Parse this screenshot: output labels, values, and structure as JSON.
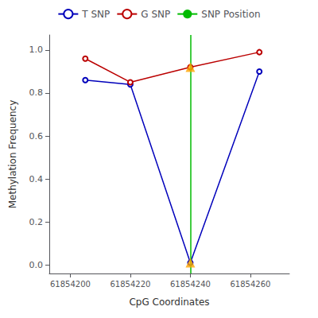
{
  "chart_data": {
    "type": "line",
    "xlabel": "CpG Coordinates",
    "ylabel": "Methylation Frequency",
    "x": [
      61854205,
      61854220,
      61854240,
      61854263
    ],
    "series": [
      {
        "name": "T SNP",
        "color": "#0000BB",
        "values": [
          0.86,
          0.84,
          0.01,
          0.9
        ],
        "marker": "open_circle"
      },
      {
        "name": "G SNP",
        "color": "#BB0000",
        "values": [
          0.96,
          0.85,
          0.92,
          0.99
        ],
        "marker": "open_circle"
      },
      {
        "name": "SNP Position",
        "type": "vline",
        "color": "#00BB00",
        "x": [
          61854240
        ]
      }
    ],
    "annotations": [
      {
        "x": 61854240,
        "y": 0.92,
        "marker": "triangle",
        "color": "#FFA500"
      },
      {
        "x": 61854240,
        "y": 0.01,
        "marker": "triangle",
        "color": "#FFA500"
      }
    ],
    "xlim": [
      61854193,
      61854273
    ],
    "ylim": [
      -0.04,
      1.07
    ],
    "xticks": [
      61854200,
      61854220,
      61854240,
      61854260
    ],
    "yticks": [
      {
        "value": 0.0,
        "label": "0.0"
      },
      0.2,
      0.4,
      0.6,
      0.8,
      {
        "value": 1.0,
        "label": "1.0"
      }
    ],
    "grid": false,
    "legend": "top"
  }
}
